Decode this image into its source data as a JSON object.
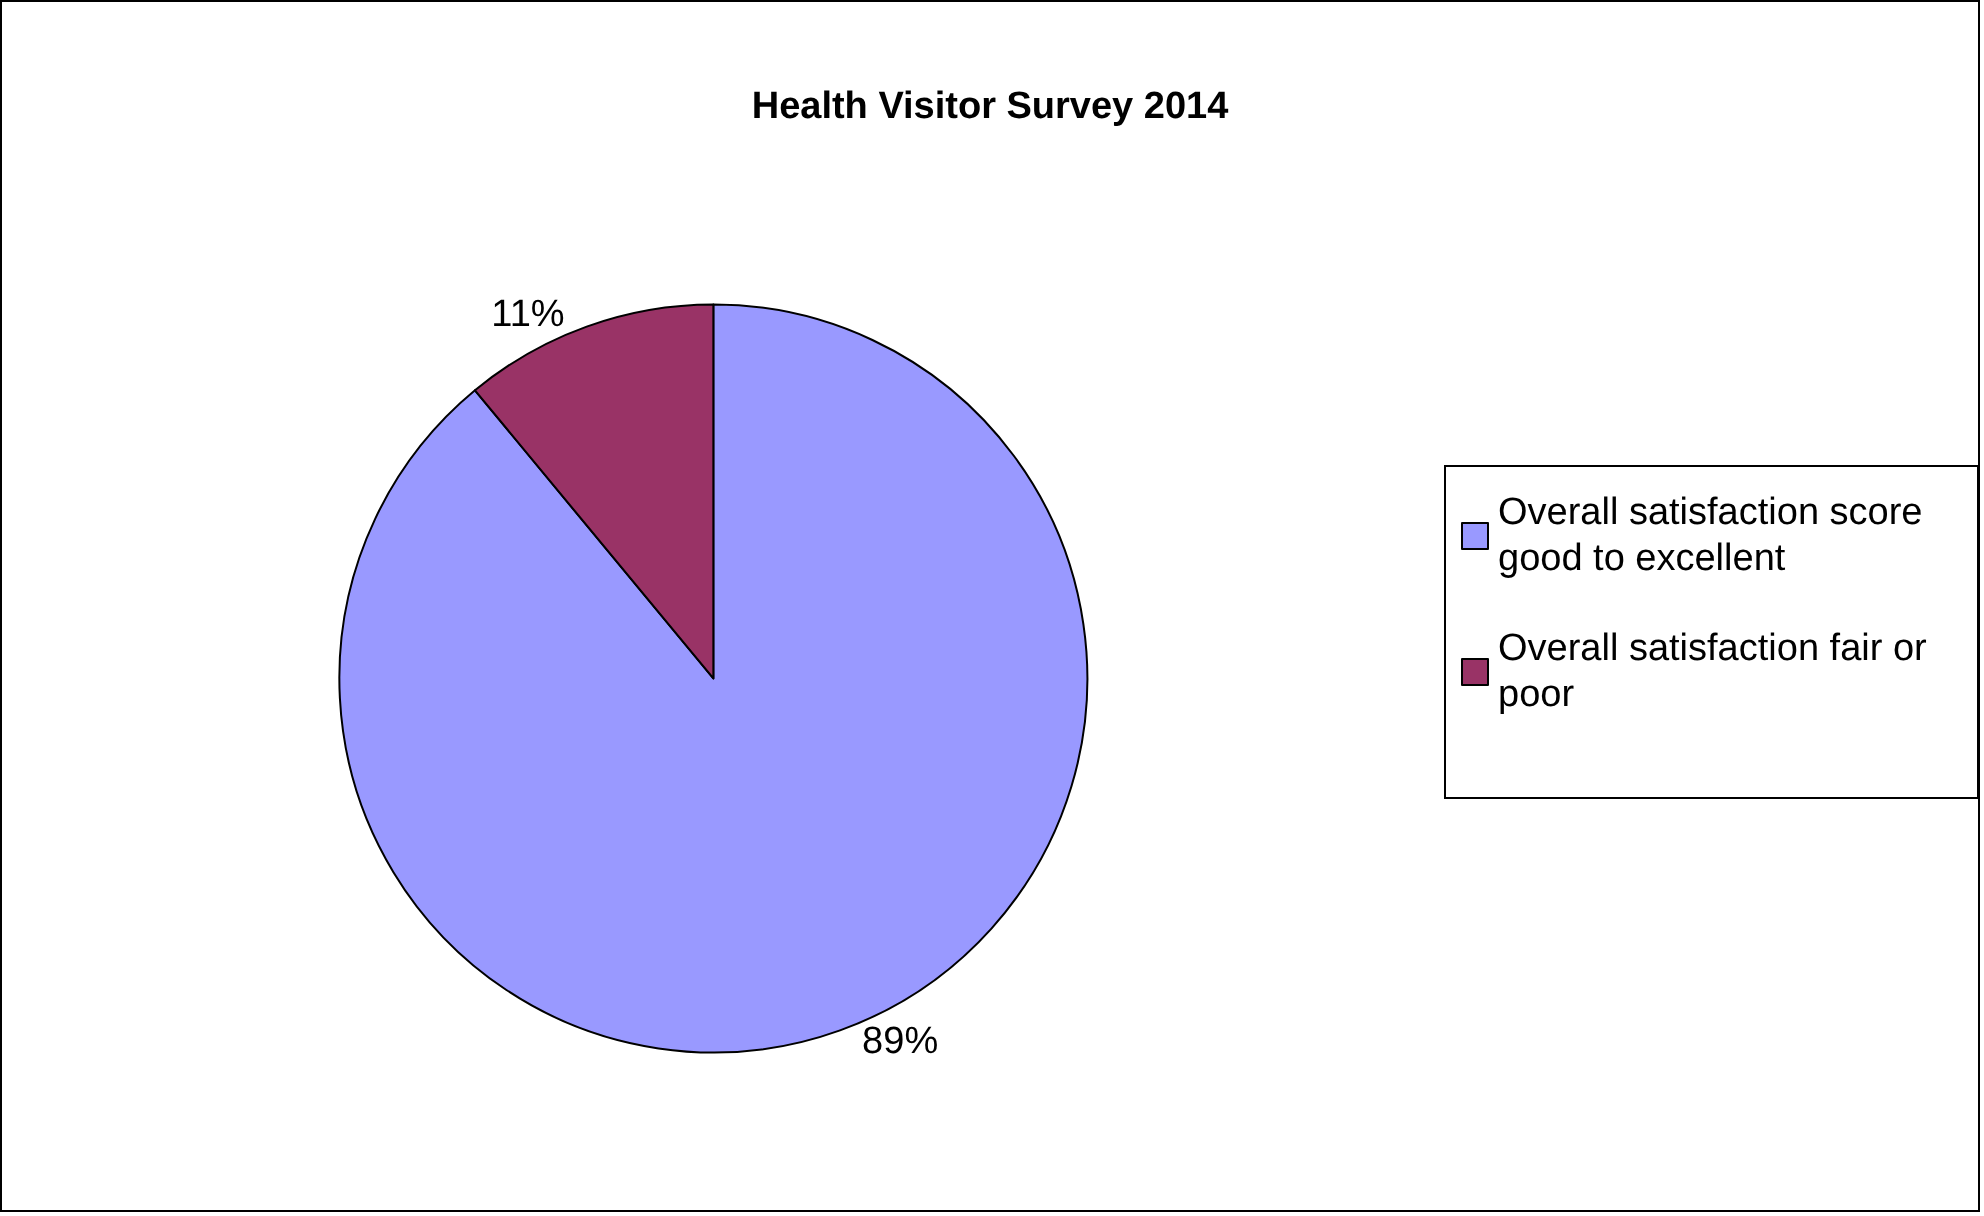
{
  "chart_data": {
    "type": "pie",
    "title": "Health Visitor Survey 2014",
    "categories": [
      "Overall satisfaction score good to excellent",
      "Overall satisfaction fair or poor"
    ],
    "values": [
      89,
      11
    ],
    "colors": [
      "#9999ff",
      "#993366"
    ],
    "value_labels": [
      "89%",
      "11%"
    ],
    "legend": "right"
  }
}
